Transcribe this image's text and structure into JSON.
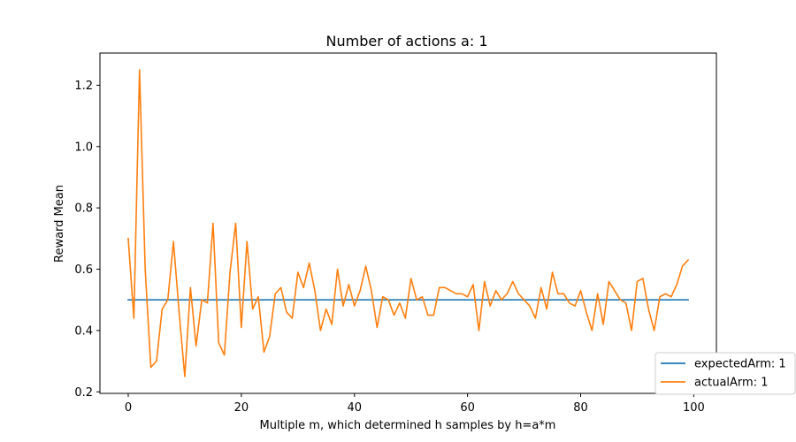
{
  "chart_data": {
    "type": "line",
    "title": "Number of actions a: 1",
    "xlabel": "Multiple m, which determined h samples by h=a*m",
    "ylabel": "Reward Mean",
    "xlim": [
      -5,
      104
    ],
    "ylim": [
      0.195,
      1.305
    ],
    "x_ticks": [
      0,
      20,
      40,
      60,
      80,
      100
    ],
    "x_tick_labels": [
      "0",
      "20",
      "40",
      "60",
      "80",
      "100"
    ],
    "y_ticks": [
      0.2,
      0.4,
      0.6,
      0.8,
      1.0,
      1.2
    ],
    "y_tick_labels": [
      "0.2",
      "0.4",
      "0.6",
      "0.8",
      "1.0",
      "1.2"
    ],
    "grid": false,
    "legend_position": "lower-right",
    "series": [
      {
        "name": "expectedArm: 1",
        "color": "#1f77b4",
        "x": [
          0,
          99
        ],
        "values": [
          0.5,
          0.5
        ]
      },
      {
        "name": "actualArm: 1",
        "color": "#ff7f0e",
        "x": [
          0,
          1,
          2,
          3,
          4,
          5,
          6,
          7,
          8,
          9,
          10,
          11,
          12,
          13,
          14,
          15,
          16,
          17,
          18,
          19,
          20,
          21,
          22,
          23,
          24,
          25,
          26,
          27,
          28,
          29,
          30,
          31,
          32,
          33,
          34,
          35,
          36,
          37,
          38,
          39,
          40,
          41,
          42,
          43,
          44,
          45,
          46,
          47,
          48,
          49,
          50,
          51,
          52,
          53,
          54,
          55,
          56,
          57,
          58,
          59,
          60,
          61,
          62,
          63,
          64,
          65,
          66,
          67,
          68,
          69,
          70,
          71,
          72,
          73,
          74,
          75,
          76,
          77,
          78,
          79,
          80,
          81,
          82,
          83,
          84,
          85,
          86,
          87,
          88,
          89,
          90,
          91,
          92,
          93,
          94,
          95,
          96,
          97,
          98,
          99
        ],
        "values": [
          0.7,
          0.44,
          1.25,
          0.6,
          0.28,
          0.3,
          0.47,
          0.5,
          0.69,
          0.46,
          0.25,
          0.54,
          0.35,
          0.5,
          0.49,
          0.75,
          0.36,
          0.32,
          0.59,
          0.75,
          0.41,
          0.69,
          0.47,
          0.51,
          0.33,
          0.38,
          0.52,
          0.54,
          0.46,
          0.44,
          0.59,
          0.54,
          0.62,
          0.53,
          0.4,
          0.47,
          0.42,
          0.6,
          0.48,
          0.55,
          0.48,
          0.53,
          0.61,
          0.53,
          0.41,
          0.51,
          0.5,
          0.45,
          0.49,
          0.44,
          0.57,
          0.5,
          0.51,
          0.45,
          0.45,
          0.54,
          0.54,
          0.53,
          0.52,
          0.52,
          0.51,
          0.55,
          0.4,
          0.56,
          0.48,
          0.53,
          0.5,
          0.52,
          0.56,
          0.52,
          0.5,
          0.48,
          0.44,
          0.54,
          0.47,
          0.59,
          0.52,
          0.52,
          0.49,
          0.48,
          0.53,
          0.46,
          0.4,
          0.52,
          0.42,
          0.56,
          0.53,
          0.5,
          0.49,
          0.4,
          0.56,
          0.57,
          0.47,
          0.4,
          0.51,
          0.52,
          0.51,
          0.55,
          0.61,
          0.63
        ]
      }
    ]
  }
}
